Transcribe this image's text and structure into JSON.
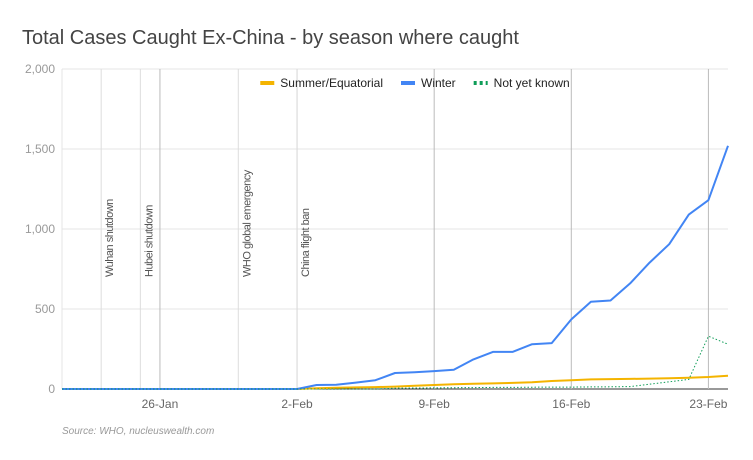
{
  "chart_data": {
    "type": "line",
    "title": "Total Cases Caught Ex-China - by season where caught",
    "source": "Source: WHO, nucleuswealth.com",
    "categories": [
      null,
      null,
      null,
      null,
      null,
      "26-Jan",
      null,
      null,
      null,
      null,
      null,
      null,
      "2-Feb",
      null,
      null,
      null,
      null,
      null,
      null,
      "9-Feb",
      null,
      null,
      null,
      null,
      null,
      null,
      "16-Feb",
      null,
      null,
      null,
      null,
      null,
      null,
      "23-Feb",
      null
    ],
    "series": [
      {
        "name": "Summer/Equatorial",
        "color": "#f4b400",
        "dash": false,
        "values": [
          0,
          0,
          0,
          0,
          0,
          0,
          0,
          0,
          0,
          0,
          0,
          0,
          0,
          5,
          8,
          10,
          12,
          15,
          20,
          25,
          30,
          33,
          35,
          38,
          42,
          50,
          55,
          60,
          62,
          63,
          65,
          67,
          70,
          75,
          83
        ]
      },
      {
        "name": "Winter",
        "color": "#4285f4",
        "dash": false,
        "values": [
          0,
          0,
          0,
          0,
          0,
          0,
          0,
          0,
          0,
          0,
          0,
          0,
          0,
          25,
          27,
          40,
          55,
          100,
          105,
          112,
          120,
          185,
          232,
          232,
          280,
          287,
          435,
          545,
          553,
          660,
          790,
          905,
          1090,
          1180,
          1520
        ]
      },
      {
        "name": "Not yet known",
        "color": "#0f9d58",
        "dash": true,
        "values": [
          0,
          0,
          0,
          0,
          0,
          0,
          0,
          0,
          0,
          0,
          0,
          0,
          0,
          0,
          0,
          0,
          0,
          5,
          6,
          7,
          8,
          9,
          10,
          10,
          11,
          12,
          12,
          13,
          14,
          15,
          30,
          45,
          60,
          330,
          280
        ]
      }
    ],
    "annotations": [
      {
        "text": "Wuhan shutdown",
        "x": 2
      },
      {
        "text": "Hubei shutdown",
        "x": 4
      },
      {
        "text": "WHO global emergency",
        "x": 9
      },
      {
        "text": "China flight ban",
        "x": 12
      }
    ],
    "ylim": [
      0,
      2000
    ],
    "yticks": [
      0,
      500,
      {
        "value": 1000,
        "label": "1,000"
      },
      {
        "value": 1500,
        "label": "1,500"
      },
      {
        "value": 2000,
        "label": "2,000"
      }
    ],
    "grid": true,
    "legend": "top"
  }
}
